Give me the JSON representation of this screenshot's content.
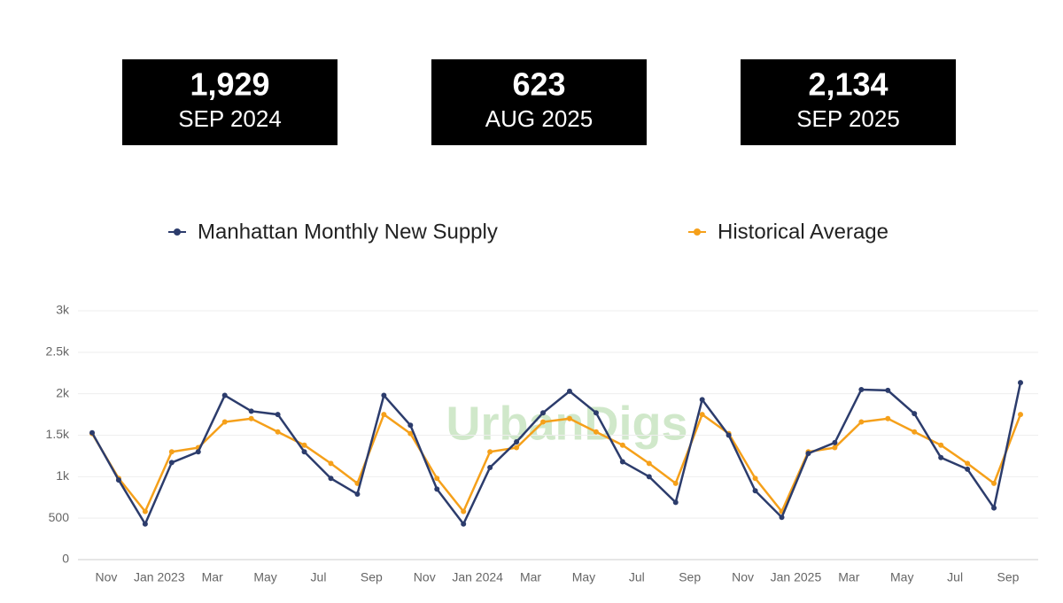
{
  "cards": [
    {
      "value": "1,929",
      "label": "SEP 2024"
    },
    {
      "value": "623",
      "label": "AUG 2025"
    },
    {
      "value": "2,134",
      "label": "SEP 2025"
    }
  ],
  "chart_data": {
    "type": "line",
    "watermark": "UrbanDigs",
    "categories": [
      null,
      "Nov",
      null,
      "Jan 2023",
      null,
      "Mar",
      null,
      "May",
      null,
      "Jul",
      null,
      "Sep",
      null,
      "Nov",
      null,
      "Jan 2024",
      null,
      "Mar",
      null,
      "May",
      null,
      "Jul",
      null,
      "Sep",
      null,
      "Nov",
      null,
      "Jan 2025",
      null,
      "Mar",
      null,
      "May",
      null,
      "Jul",
      null,
      "Sep"
    ],
    "series": [
      {
        "name": "Manhattan Monthly New Supply",
        "color": "#2c3c6c",
        "values": [
          1530,
          960,
          430,
          1170,
          1300,
          1980,
          1790,
          1750,
          1300,
          980,
          790,
          1980,
          1620,
          850,
          430,
          1110,
          1420,
          1770,
          2030,
          1770,
          1180,
          1000,
          690,
          1929,
          1500,
          830,
          510,
          1280,
          1410,
          2050,
          2040,
          1760,
          1230,
          1090,
          623,
          2134
        ]
      },
      {
        "name": "Historical Average",
        "color": "#f5a01a",
        "values": [
          1520,
          980,
          580,
          1300,
          1350,
          1660,
          1700,
          1540,
          1380,
          1160,
          920,
          1750,
          1520,
          980,
          580,
          1300,
          1350,
          1660,
          1700,
          1540,
          1380,
          1160,
          920,
          1750,
          1520,
          980,
          580,
          1300,
          1350,
          1660,
          1700,
          1540,
          1380,
          1160,
          920,
          1750
        ]
      }
    ],
    "ylim": [
      0,
      3000
    ],
    "yticks": [
      0,
      500,
      {
        "value": 1000,
        "label": "1k"
      },
      {
        "value": 1500,
        "label": "1.5k"
      },
      {
        "value": 2000,
        "label": "2k"
      },
      {
        "value": 2500,
        "label": "2.5k"
      },
      {
        "value": 3000,
        "label": "3k"
      }
    ],
    "grid": true
  }
}
